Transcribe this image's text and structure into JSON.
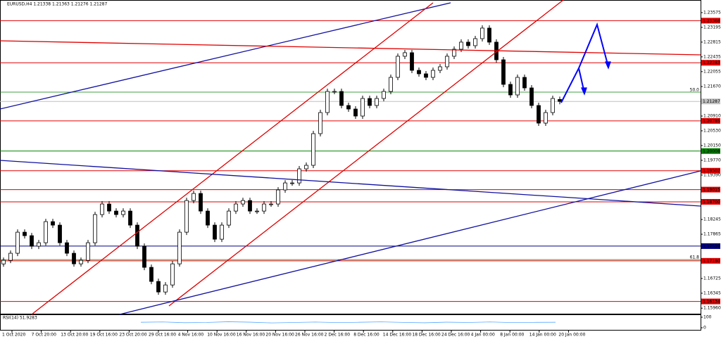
{
  "header": "EURUSD,H4  1.21338 1.21363 1.21276 1.21287",
  "chart_data": {
    "type": "candlestick",
    "x_labels": [
      "1 Oct 2020",
      "7 Oct 20:00",
      "13 Oct 20:00",
      "19 Oct 16:00",
      "23 Oct 20:00",
      "29 Oct 16:00",
      "4 Nov 16:00",
      "10 Nov 16:00",
      "16 Nov 16:00",
      "20 Nov 16:00",
      "26 Nov 16:00",
      "2 Dec 16:00",
      "8 Dec 16:00",
      "14 Dec 16:00",
      "18 Dec 16:00",
      "24 Dec 16:00",
      "4 Jan 00:00",
      "8 Jan 00:00",
      "14 Jan 00:00",
      "20 Jan 00:00"
    ],
    "open": [
      1.171,
      1.17193,
      1.17375,
      1.17918,
      1.17828,
      1.17556,
      1.17646,
      1.1819,
      1.181,
      1.17646,
      1.17375,
      1.17102,
      1.17193,
      1.17646,
      1.18372,
      1.18644,
      1.18462,
      1.18372,
      1.18462,
      1.181,
      1.17556,
      1.17012,
      1.16649,
      1.16377,
      1.16558,
      1.17102,
      1.17918,
      1.18734,
      1.18916,
      1.18462,
      1.181,
      1.17737,
      1.181,
      1.18462,
      1.18644,
      1.18734,
      1.18462,
      1.18462,
      1.18644,
      1.18644,
      1.19006,
      1.19187,
      1.19187,
      1.1955,
      1.19641,
      1.20457,
      1.21,
      1.21544,
      1.21544,
      1.21182,
      1.21091,
      1.2091,
      1.21363,
      1.21182,
      1.21363,
      1.21544,
      1.21907,
      1.22451,
      1.22542,
      1.22088,
      1.21998,
      1.21907,
      1.22088,
      1.22179,
      1.22451,
      1.22632,
      1.22814,
      1.22723,
      1.22904,
      1.23176,
      1.22814,
      1.2236,
      1.21726,
      1.21454,
      1.21907,
      1.21635,
      1.21182,
      1.20728,
      1.21,
      1.21338
    ],
    "close": [
      1.17193,
      1.17375,
      1.17918,
      1.17828,
      1.17556,
      1.17646,
      1.1819,
      1.181,
      1.17646,
      1.17375,
      1.17102,
      1.17193,
      1.17646,
      1.18372,
      1.18644,
      1.18462,
      1.18372,
      1.18462,
      1.181,
      1.17556,
      1.17012,
      1.16649,
      1.16377,
      1.16558,
      1.17102,
      1.17918,
      1.18734,
      1.18916,
      1.18462,
      1.181,
      1.17737,
      1.181,
      1.18462,
      1.18644,
      1.18734,
      1.18462,
      1.18462,
      1.18644,
      1.18644,
      1.19006,
      1.19187,
      1.19187,
      1.1955,
      1.19641,
      1.20457,
      1.21,
      1.21544,
      1.21544,
      1.21182,
      1.21091,
      1.2091,
      1.21363,
      1.21182,
      1.21363,
      1.21544,
      1.21907,
      1.22451,
      1.22542,
      1.22088,
      1.21998,
      1.21907,
      1.22088,
      1.22179,
      1.22451,
      1.22632,
      1.22814,
      1.22723,
      1.22904,
      1.23176,
      1.22814,
      1.2236,
      1.21726,
      1.21454,
      1.21907,
      1.21635,
      1.21182,
      1.20728,
      1.21,
      1.21363,
      1.21287
    ],
    "ylim": [
      1.158,
      1.239
    ],
    "yticks": [
      {
        "value": 1.23575,
        "label": "1.23575"
      },
      {
        "value": 1.23195,
        "label": "1.23195"
      },
      {
        "value": 1.22815,
        "label": "1.22815"
      },
      {
        "value": 1.22435,
        "label": "1.22435"
      },
      {
        "value": 1.22055,
        "label": "1.22055"
      },
      {
        "value": 1.2167,
        "label": "1.21670"
      },
      {
        "value": 1.2091,
        "label": "1.20910"
      },
      {
        "value": 1.2053,
        "label": "1.20530"
      },
      {
        "value": 1.2015,
        "label": "1.20150"
      },
      {
        "value": 1.1977,
        "label": "1.19770"
      },
      {
        "value": 1.1939,
        "label": "1.19390"
      },
      {
        "value": 1.18245,
        "label": "1.18245"
      },
      {
        "value": 1.17865,
        "label": "1.17865"
      },
      {
        "value": 1.16725,
        "label": "1.16725"
      },
      {
        "value": 1.16345,
        "label": "1.16345"
      },
      {
        "value": 1.1596,
        "label": "1.15960"
      }
    ],
    "levels": [
      {
        "value": 1.23368,
        "label": "1.23368",
        "color": "#e00000"
      },
      {
        "value": 1.22283,
        "label": "1.22283",
        "color": "#e00000"
      },
      {
        "value": 1.21287,
        "label": "1.21287",
        "color": "#c0c0c0"
      },
      {
        "value": 1.20785,
        "label": "1.20785",
        "color": "#e00000"
      },
      {
        "value": 1.20008,
        "label": "1.20008",
        "color": "#008000"
      },
      {
        "value": 1.19502,
        "label": "1.19502",
        "color": "#e00000"
      },
      {
        "value": 1.19015,
        "label": "1.19015",
        "color": "#e00000"
      },
      {
        "value": 1.187,
        "label": "1.18700",
        "color": "#e00000"
      },
      {
        "value": 1.17559,
        "label": "1.17559",
        "color": "#000080"
      },
      {
        "value": 1.1718,
        "label": "1.17180",
        "color": "#e00000"
      },
      {
        "value": 1.16134,
        "label": "1.16134",
        "color": "#e00000"
      }
    ],
    "fib_levels": [
      {
        "value": 1.21526,
        "label": "50.0"
      },
      {
        "value": 1.17211,
        "label": "61.8"
      }
    ],
    "rsi": {
      "label": "RSI(14) 51.9283",
      "ylim": [
        0,
        100
      ],
      "yticks": [
        100,
        0
      ],
      "color": "#55aaff",
      "values": [
        52,
        55,
        48,
        50,
        57,
        53,
        46,
        50,
        54,
        49,
        52,
        56,
        51,
        47,
        53,
        50,
        55,
        49,
        51,
        52
      ]
    }
  }
}
